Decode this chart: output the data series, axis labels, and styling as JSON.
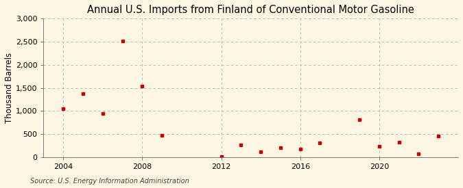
{
  "title": "Annual U.S. Imports from Finland of Conventional Motor Gasoline",
  "ylabel": "Thousand Barrels",
  "source": "Source: U.S. Energy Information Administration",
  "background_color": "#fdf6e3",
  "plot_bg_color": "#fdf6e3",
  "years": [
    2004,
    2005,
    2006,
    2007,
    2008,
    2009,
    2012,
    2013,
    2014,
    2015,
    2016,
    2017,
    2019,
    2020,
    2021,
    2022,
    2023
  ],
  "values": [
    1050,
    1380,
    950,
    2510,
    1540,
    470,
    10,
    270,
    120,
    200,
    175,
    305,
    810,
    230,
    325,
    70,
    450
  ],
  "marker_color": "#cc0000",
  "marker": "s",
  "marker_size": 3.5,
  "xlim": [
    2003.0,
    2024.0
  ],
  "ylim": [
    0,
    3000
  ],
  "yticks": [
    0,
    500,
    1000,
    1500,
    2000,
    2500,
    3000
  ],
  "ytick_labels": [
    "0",
    "500",
    "1,000",
    "1,500",
    "2,000",
    "2,500",
    "3,000"
  ],
  "xticks": [
    2004,
    2008,
    2012,
    2016,
    2020
  ],
  "grid_color": "#b0b0b0",
  "grid_style": "--",
  "title_fontsize": 10.5,
  "label_fontsize": 8.5,
  "tick_fontsize": 8,
  "source_fontsize": 7
}
